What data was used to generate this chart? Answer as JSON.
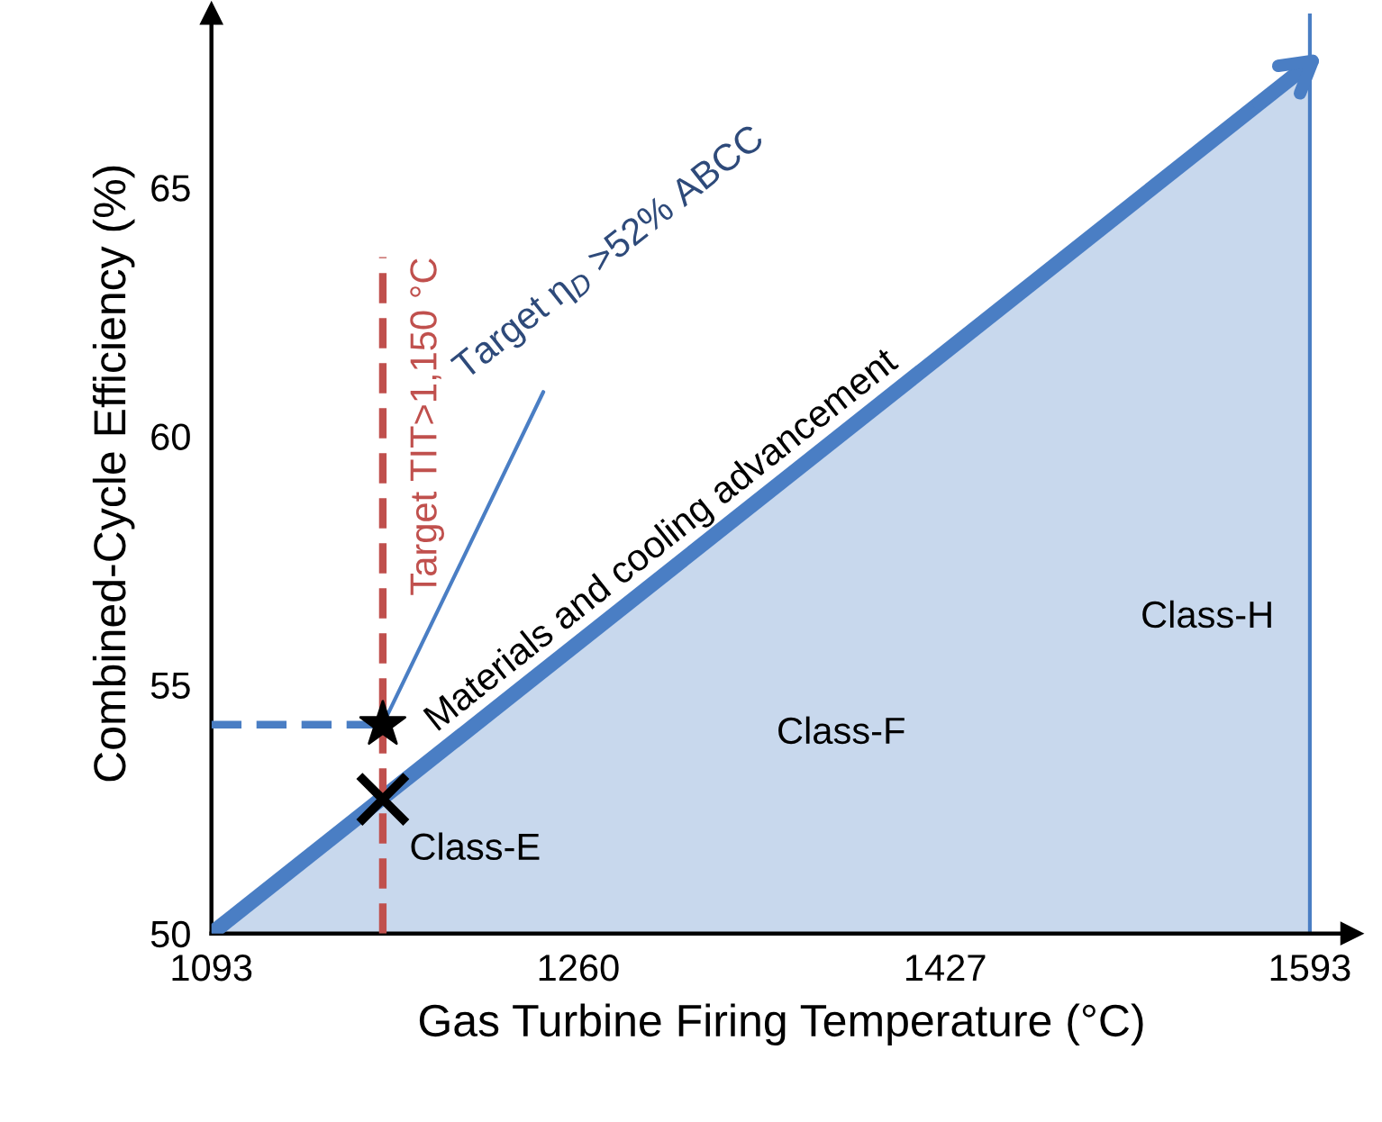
{
  "chart_data": {
    "type": "line",
    "xlabel": "Gas Turbine Firing Temperature (°C)",
    "ylabel": "Combined-Cycle Efficiency (%)",
    "xlim": [
      1093,
      1612
    ],
    "ylim": [
      50,
      68.5
    ],
    "xticks": [
      1093,
      1260,
      1427,
      1593
    ],
    "yticks": [
      50,
      55,
      60,
      65
    ],
    "grid": false,
    "series": [
      {
        "type": "area",
        "name": "Materials and cooling advancement",
        "color": "#4a7ec4",
        "x": [
          1093,
          1593
        ],
        "values": [
          50,
          67.5
        ],
        "marker": "none",
        "line_style": "solid"
      },
      {
        "name": "Target TIT>1,150 °C",
        "color": "#c0504d",
        "x": [
          1171,
          1171
        ],
        "values": [
          50,
          63.6
        ],
        "marker": "none",
        "line_style": "dashed"
      },
      {
        "color": "#4a7ec4",
        "x": [
          1093,
          1171
        ],
        "values": [
          54.2,
          54.2
        ],
        "marker": "none",
        "line_style": "dashed"
      },
      {
        "type": "scatter",
        "color": "#000000",
        "x": [
          1171
        ],
        "values": [
          54.2
        ],
        "marker": "star"
      },
      {
        "type": "scatter",
        "color": "#000000",
        "x": [
          1171
        ],
        "values": [
          52.7
        ],
        "marker": "cross"
      }
    ],
    "ref_lines": [
      {
        "axis": "x",
        "value": 1593,
        "color": "#4a7ec4",
        "line_style": "solid"
      }
    ],
    "annotations": [
      {
        "text": "Target η$_{D}$ >52% ABCC",
        "x": 1171,
        "y": 54.2
      },
      "Class-E",
      "Class-F",
      "Class-H"
    ]
  }
}
